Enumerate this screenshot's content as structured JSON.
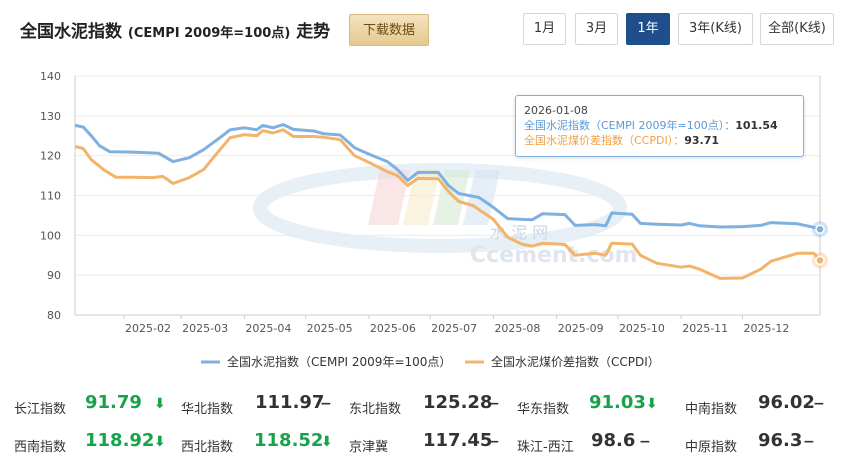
{
  "header": {
    "title": "全国水泥指数",
    "title_sub": "(CEMPI 2009年=100点)",
    "title_suffix": "走势",
    "download_label": "下载数据",
    "ranges": [
      "1月",
      "3月",
      "1年",
      "3年(K线)",
      "全部(K线)"
    ],
    "active_range": "1年"
  },
  "tooltip": {
    "date": "2026-01-08",
    "line1_label": "全国水泥指数（CEMPI 2009年=100点）：",
    "line1_value": "101.54",
    "line2_label": "全国水泥煤价差指数（CCPDI）：",
    "line2_value": "93.71"
  },
  "watermark": {
    "cn": "水 泥 网",
    "en": "Ccement.com"
  },
  "chart_data": {
    "type": "line",
    "ylim": [
      80,
      140
    ],
    "yticks": [
      80,
      90,
      100,
      110,
      120,
      130,
      140
    ],
    "xticks": [
      "2025-02",
      "2025-03",
      "2025-04",
      "2025-05",
      "2025-06",
      "2025-07",
      "2025-08",
      "2025-09",
      "2025-10",
      "2025-11",
      "2025-12"
    ],
    "x_range": [
      "2025-01-08",
      "2026-01-08"
    ],
    "colors": {
      "cempi": "#7eb0e0",
      "ccpdi": "#f2b46a"
    },
    "series": [
      {
        "key": "cempi",
        "name": "全国水泥指数（CEMPI 2009年=100点）",
        "points": [
          [
            "2025-01-08",
            127.6
          ],
          [
            "2025-01-12",
            127.2
          ],
          [
            "2025-01-16",
            125.0
          ],
          [
            "2025-01-20",
            122.5
          ],
          [
            "2025-01-25",
            121.0
          ],
          [
            "2025-02-05",
            120.9
          ],
          [
            "2025-02-18",
            120.6
          ],
          [
            "2025-02-25",
            118.5
          ],
          [
            "2025-03-05",
            119.5
          ],
          [
            "2025-03-12",
            121.5
          ],
          [
            "2025-03-20",
            124.5
          ],
          [
            "2025-03-25",
            126.5
          ],
          [
            "2025-04-01",
            127.0
          ],
          [
            "2025-04-07",
            126.5
          ],
          [
            "2025-04-10",
            127.6
          ],
          [
            "2025-04-15",
            127.0
          ],
          [
            "2025-04-20",
            127.8
          ],
          [
            "2025-04-25",
            126.6
          ],
          [
            "2025-05-05",
            126.2
          ],
          [
            "2025-05-10",
            125.5
          ],
          [
            "2025-05-18",
            125.2
          ],
          [
            "2025-05-25",
            122.0
          ],
          [
            "2025-06-01",
            120.4
          ],
          [
            "2025-06-10",
            118.5
          ],
          [
            "2025-06-15",
            116.5
          ],
          [
            "2025-06-20",
            113.8
          ],
          [
            "2025-06-25",
            115.8
          ],
          [
            "2025-07-05",
            115.8
          ],
          [
            "2025-07-10",
            112.5
          ],
          [
            "2025-07-15",
            110.5
          ],
          [
            "2025-07-25",
            109.5
          ],
          [
            "2025-08-01",
            107.0
          ],
          [
            "2025-08-08",
            104.2
          ],
          [
            "2025-08-15",
            104.0
          ],
          [
            "2025-08-20",
            103.9
          ],
          [
            "2025-08-25",
            105.4
          ],
          [
            "2025-09-05",
            105.2
          ],
          [
            "2025-09-10",
            102.5
          ],
          [
            "2025-09-20",
            102.7
          ],
          [
            "2025-09-25",
            102.4
          ],
          [
            "2025-09-28",
            105.6
          ],
          [
            "2025-10-08",
            105.3
          ],
          [
            "2025-10-12",
            103.0
          ],
          [
            "2025-10-20",
            102.8
          ],
          [
            "2025-11-01",
            102.6
          ],
          [
            "2025-11-05",
            103.0
          ],
          [
            "2025-11-10",
            102.4
          ],
          [
            "2025-11-20",
            102.1
          ],
          [
            "2025-12-01",
            102.2
          ],
          [
            "2025-12-10",
            102.5
          ],
          [
            "2025-12-15",
            103.2
          ],
          [
            "2025-12-28",
            102.9
          ],
          [
            "2026-01-05",
            102.0
          ],
          [
            "2026-01-08",
            101.54
          ]
        ]
      },
      {
        "key": "ccpdi",
        "name": "全国水泥煤价差指数（CCPDI）",
        "points": [
          [
            "2025-01-08",
            122.3
          ],
          [
            "2025-01-12",
            121.8
          ],
          [
            "2025-01-16",
            119.0
          ],
          [
            "2025-01-22",
            116.5
          ],
          [
            "2025-01-28",
            114.6
          ],
          [
            "2025-02-05",
            114.6
          ],
          [
            "2025-02-15",
            114.5
          ],
          [
            "2025-02-20",
            114.8
          ],
          [
            "2025-02-25",
            113.0
          ],
          [
            "2025-03-05",
            114.5
          ],
          [
            "2025-03-12",
            116.5
          ],
          [
            "2025-03-20",
            121.5
          ],
          [
            "2025-03-25",
            124.5
          ],
          [
            "2025-04-01",
            125.3
          ],
          [
            "2025-04-07",
            125.0
          ],
          [
            "2025-04-10",
            126.3
          ],
          [
            "2025-04-15",
            125.7
          ],
          [
            "2025-04-20",
            126.5
          ],
          [
            "2025-04-25",
            124.8
          ],
          [
            "2025-05-05",
            124.8
          ],
          [
            "2025-05-10",
            124.6
          ],
          [
            "2025-05-18",
            124.0
          ],
          [
            "2025-05-25",
            120.0
          ],
          [
            "2025-06-01",
            118.3
          ],
          [
            "2025-06-10",
            116.0
          ],
          [
            "2025-06-15",
            115.0
          ],
          [
            "2025-06-20",
            112.5
          ],
          [
            "2025-06-25",
            114.3
          ],
          [
            "2025-07-05",
            114.2
          ],
          [
            "2025-07-10",
            111.0
          ],
          [
            "2025-07-15",
            108.5
          ],
          [
            "2025-07-22",
            107.5
          ],
          [
            "2025-08-01",
            104.0
          ],
          [
            "2025-08-08",
            99.5
          ],
          [
            "2025-08-15",
            97.8
          ],
          [
            "2025-08-20",
            97.3
          ],
          [
            "2025-08-25",
            98.0
          ],
          [
            "2025-09-05",
            97.7
          ],
          [
            "2025-09-10",
            95.0
          ],
          [
            "2025-09-20",
            95.5
          ],
          [
            "2025-09-25",
            95.0
          ],
          [
            "2025-09-28",
            98.0
          ],
          [
            "2025-10-08",
            97.8
          ],
          [
            "2025-10-12",
            95.0
          ],
          [
            "2025-10-20",
            93.0
          ],
          [
            "2025-11-01",
            92.0
          ],
          [
            "2025-11-05",
            92.3
          ],
          [
            "2025-11-10",
            91.5
          ],
          [
            "2025-11-20",
            89.2
          ],
          [
            "2025-12-01",
            89.3
          ],
          [
            "2025-12-10",
            91.5
          ],
          [
            "2025-12-15",
            93.5
          ],
          [
            "2025-12-28",
            95.5
          ],
          [
            "2026-01-05",
            95.5
          ],
          [
            "2026-01-08",
            93.71
          ]
        ]
      }
    ]
  },
  "indices": [
    {
      "name": "长江指数",
      "value": "91.79",
      "trend": "down"
    },
    {
      "name": "华北指数",
      "value": "111.97",
      "trend": "flat"
    },
    {
      "name": "东北指数",
      "value": "125.28",
      "trend": "flat"
    },
    {
      "name": "华东指数",
      "value": "91.03",
      "trend": "down"
    },
    {
      "name": "中南指数",
      "value": "96.02",
      "trend": "flat"
    },
    {
      "name": "西南指数",
      "value": "118.92",
      "trend": "down"
    },
    {
      "name": "西北指数",
      "value": "118.52",
      "trend": "down"
    },
    {
      "name": "京津冀",
      "value": "117.45",
      "trend": "flat"
    },
    {
      "name": "珠江-西江",
      "value": "98.6",
      "trend": "flat"
    },
    {
      "name": "中原指数",
      "value": "96.3",
      "trend": "flat"
    }
  ],
  "trend_symbols": {
    "down": "⬇",
    "flat": "−"
  }
}
